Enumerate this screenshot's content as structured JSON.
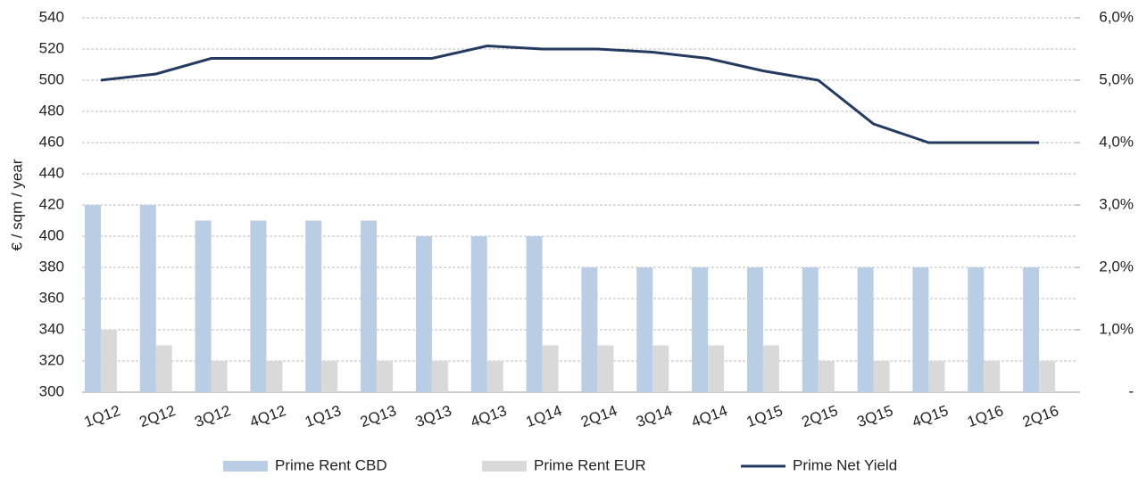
{
  "chart_data": {
    "type": "bar_line",
    "y_axis_label": "€ / sqm / year",
    "categories": [
      "1Q12",
      "2Q12",
      "3Q12",
      "4Q12",
      "1Q13",
      "2Q13",
      "3Q13",
      "4Q13",
      "1Q14",
      "2Q14",
      "3Q14",
      "4Q14",
      "1Q15",
      "2Q15",
      "3Q15",
      "4Q15",
      "1Q16",
      "2Q16"
    ],
    "series": [
      {
        "name": "Prime Rent CBD",
        "color": "#b9cde5",
        "type": "bar",
        "values": [
          420,
          420,
          410,
          410,
          410,
          410,
          400,
          400,
          400,
          380,
          380,
          380,
          380,
          380,
          380,
          380,
          380,
          380
        ]
      },
      {
        "name": "Prime Rent EUR",
        "color": "#d9d9d9",
        "type": "bar",
        "values": [
          340,
          330,
          320,
          320,
          320,
          320,
          320,
          320,
          330,
          330,
          330,
          330,
          330,
          320,
          320,
          320,
          320,
          320
        ]
      },
      {
        "name": "Prime Net Yield",
        "color": "#243a5e",
        "type": "line",
        "axis": "y2",
        "values": [
          5.0,
          5.1,
          5.35,
          5.35,
          5.35,
          5.35,
          5.35,
          5.55,
          5.5,
          5.5,
          5.45,
          5.35,
          5.15,
          5.0,
          4.3,
          4.0,
          4.0,
          4.0
        ]
      }
    ],
    "ylim": [
      300,
      540
    ],
    "yticks": [
      300,
      320,
      340,
      360,
      380,
      400,
      420,
      440,
      460,
      480,
      500,
      520,
      540
    ],
    "y2lim": [
      0,
      6
    ],
    "y2ticks": [
      {
        "value": 0,
        "label": "-"
      },
      {
        "value": 1,
        "label": "1,0%"
      },
      {
        "value": 2,
        "label": "2,0%"
      },
      {
        "value": 3,
        "label": "3,0%"
      },
      {
        "value": 4,
        "label": "4,0%"
      },
      {
        "value": 5,
        "label": "5,0%"
      },
      {
        "value": 6,
        "label": "6,0%"
      }
    ],
    "grid": true,
    "legend": "bottom"
  }
}
